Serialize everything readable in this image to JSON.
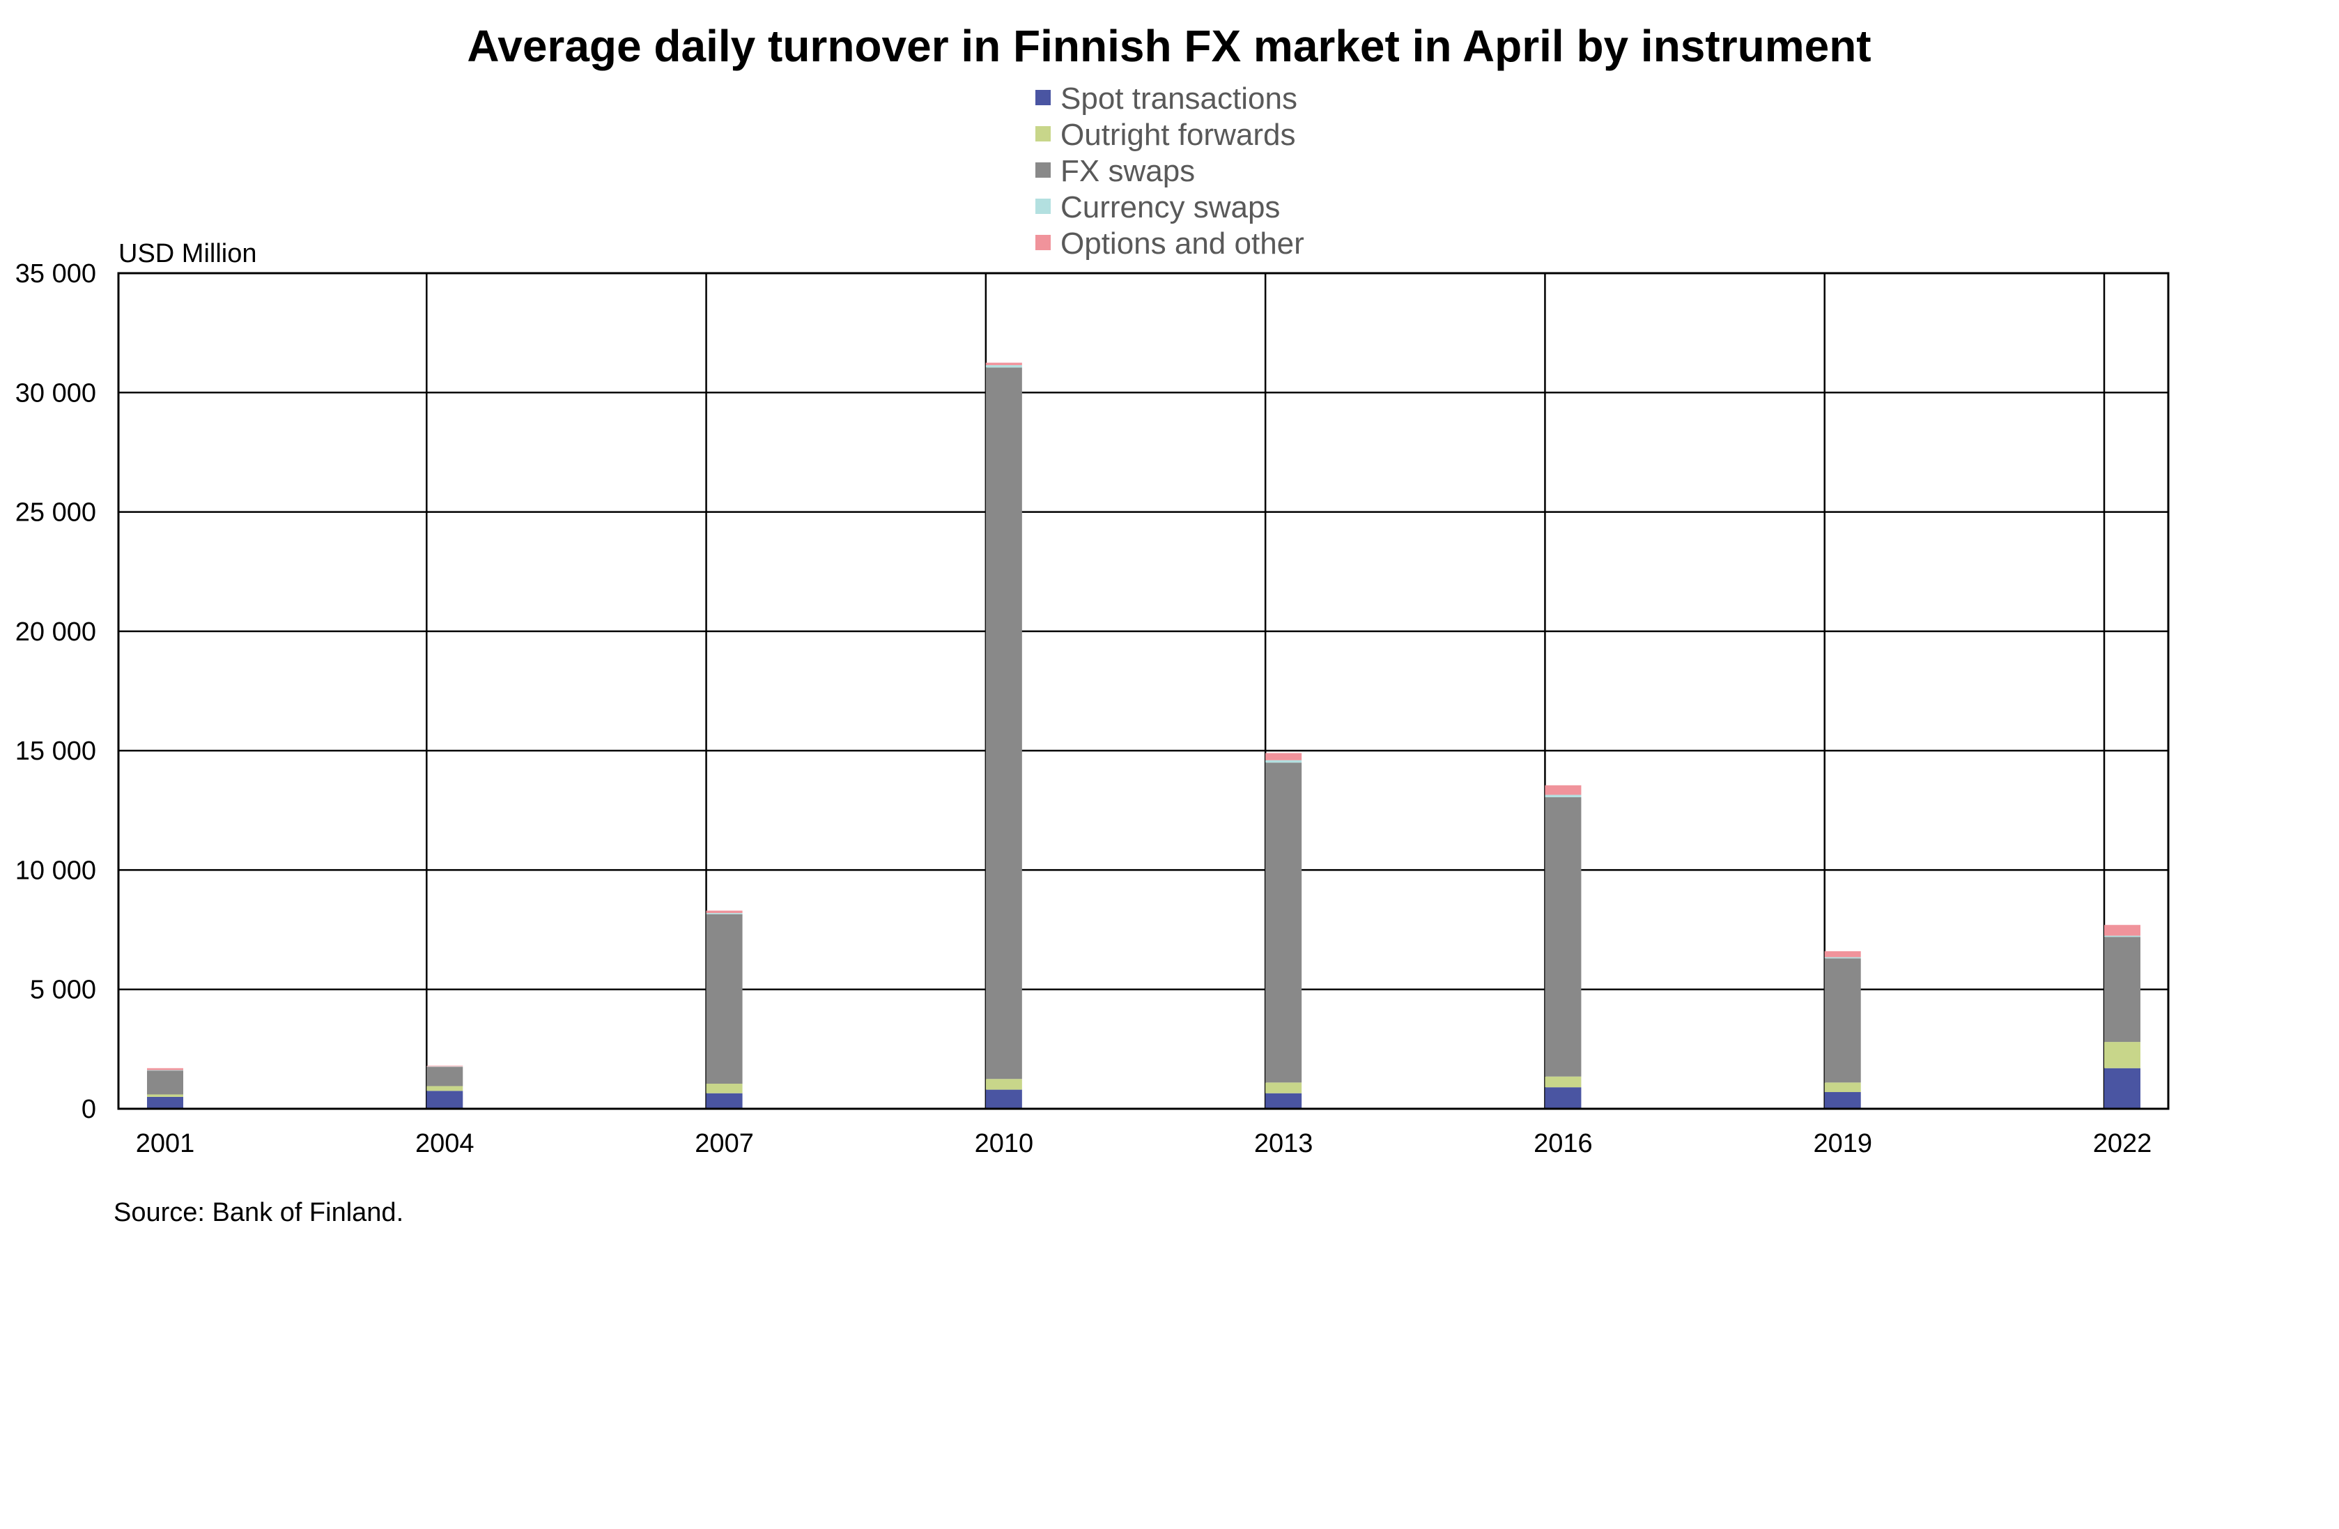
{
  "chart_data": {
    "type": "bar",
    "stacked": true,
    "title": "Average daily turnover in Finnish FX market in April by instrument",
    "ylabel": "USD Million",
    "xlabel": "",
    "ylim": [
      0,
      35000
    ],
    "yticks": [
      0,
      5000,
      10000,
      15000,
      20000,
      25000,
      30000,
      35000
    ],
    "ytick_labels": [
      "0",
      "5 000",
      "10 000",
      "15 000",
      "20 000",
      "25 000",
      "30 000",
      "35 000"
    ],
    "grid": true,
    "legend_position": "top-center",
    "categories": [
      "2001",
      "2004",
      "2007",
      "2010",
      "2013",
      "2016",
      "2019",
      "2022"
    ],
    "series": [
      {
        "name": "Spot transactions",
        "color": "#4a55a2",
        "values": [
          500,
          750,
          650,
          800,
          650,
          900,
          700,
          1700
        ]
      },
      {
        "name": "Outright forwards",
        "color": "#c8d68a",
        "values": [
          100,
          200,
          400,
          450,
          450,
          450,
          400,
          1100
        ]
      },
      {
        "name": "FX swaps",
        "color": "#898989",
        "values": [
          1000,
          800,
          7100,
          29800,
          13400,
          11700,
          5200,
          4400
        ]
      },
      {
        "name": "Currency swaps",
        "color": "#b3e0e0",
        "values": [
          20,
          20,
          50,
          100,
          100,
          100,
          50,
          50
        ]
      },
      {
        "name": "Options and other",
        "color": "#f0939b",
        "values": [
          80,
          30,
          100,
          100,
          300,
          400,
          250,
          450
        ]
      }
    ],
    "source": "Source: Bank of Finland."
  }
}
